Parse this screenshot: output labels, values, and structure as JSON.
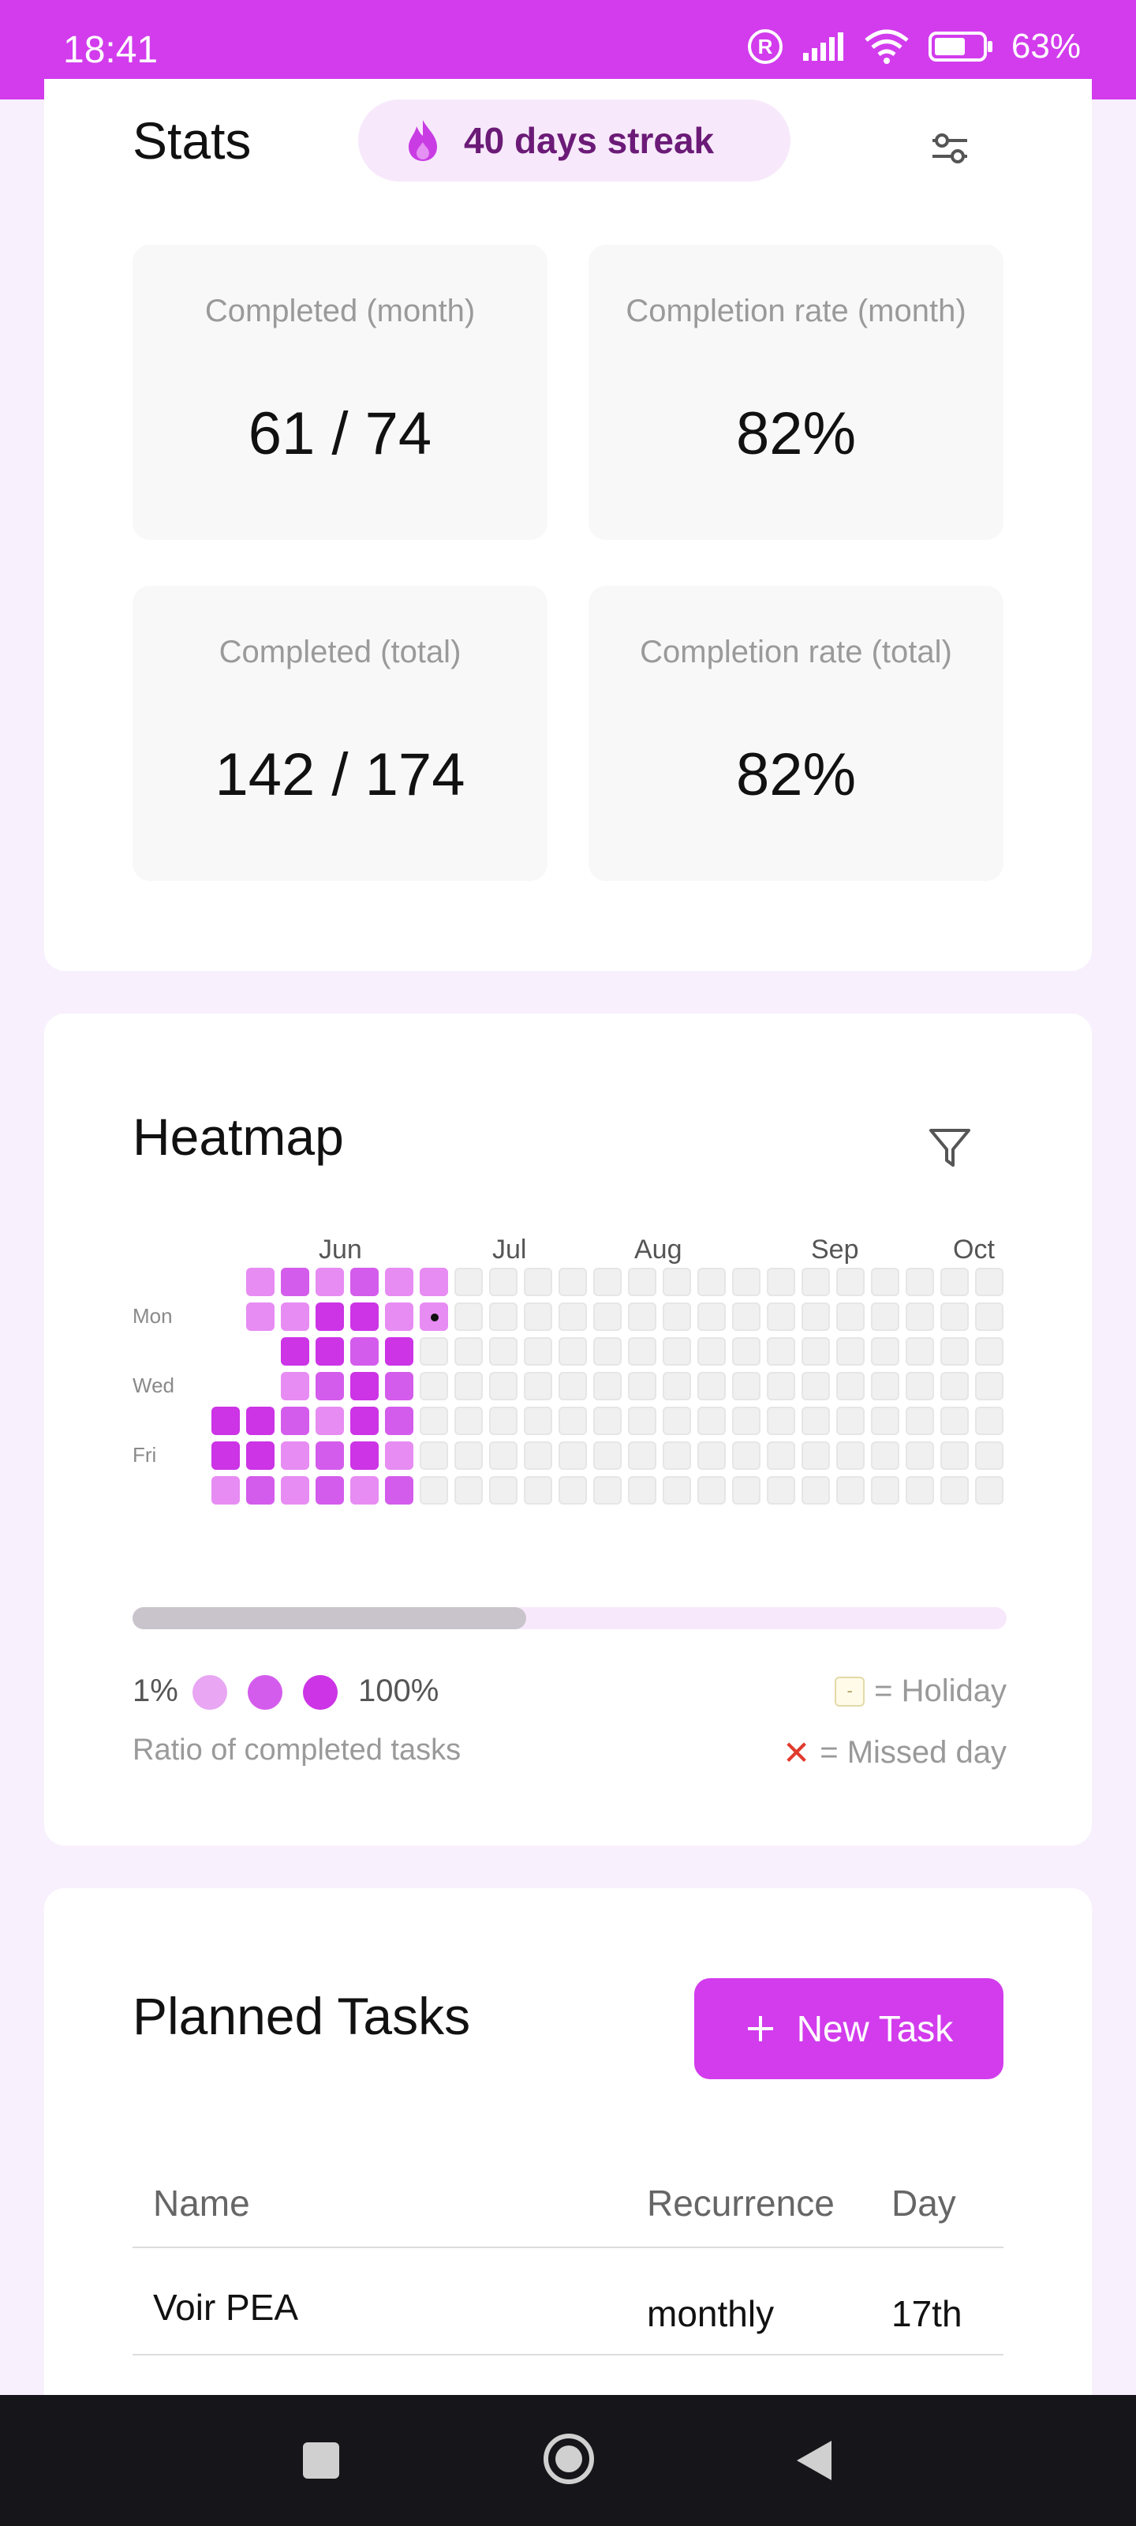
{
  "status": {
    "time": "18:41",
    "battery": "63%"
  },
  "stats": {
    "title": "Stats",
    "streak": "40 days streak",
    "boxes": [
      {
        "label": "Completed (month)",
        "value": "61 / 74"
      },
      {
        "label": "Completion rate (month)",
        "value": "82%"
      },
      {
        "label": "Completed (total)",
        "value": "142 / 174"
      },
      {
        "label": "Completion rate (total)",
        "value": "82%"
      }
    ]
  },
  "heatmap": {
    "title": "Heatmap",
    "months": [
      "Jun",
      "Jul",
      "Aug",
      "Sep",
      "Oct"
    ],
    "days": [
      "Mon",
      "Wed",
      "Fri"
    ],
    "columns_visible": 23,
    "filled_columns": [
      {
        "col": 0,
        "levels": [
          0,
          0,
          0,
          0,
          3,
          3,
          1
        ]
      },
      {
        "col": 1,
        "levels": [
          1,
          1,
          0,
          0,
          3,
          3,
          2
        ]
      },
      {
        "col": 2,
        "levels": [
          2,
          1,
          3,
          1,
          2,
          1,
          1
        ]
      },
      {
        "col": 3,
        "levels": [
          1,
          3,
          3,
          2,
          1,
          2,
          2
        ]
      },
      {
        "col": 4,
        "levels": [
          2,
          3,
          2,
          3,
          3,
          3,
          1
        ]
      },
      {
        "col": 5,
        "levels": [
          1,
          1,
          3,
          2,
          2,
          1,
          2
        ]
      },
      {
        "col": 6,
        "levels": [
          1,
          "today",
          0,
          0,
          0,
          0,
          0
        ]
      }
    ],
    "scroll_position": 0.45,
    "legend": {
      "min": "1%",
      "max": "100%",
      "holiday": "= Holiday",
      "holiday_symbol": "-",
      "missed": "= Missed day",
      "missed_symbol": "✕",
      "note": "Ratio of completed tasks"
    },
    "colors": {
      "level1": "#e78cf3",
      "level2": "#d45cec",
      "level3": "#cc34e6",
      "empty": "#f0f0f0"
    }
  },
  "tasks": {
    "title": "Planned Tasks",
    "new_task_label": "New Task",
    "columns": {
      "name": "Name",
      "recurrence": "Recurrence",
      "day": "Day"
    },
    "rows": [
      {
        "name": "Voir PEA",
        "recurrence": "monthly",
        "day": "17th"
      }
    ]
  },
  "colors": {
    "accent": "#d23ced",
    "background": "#f8f0fd"
  },
  "icons": {
    "streak": "flame-icon",
    "settings": "sliders-icon",
    "filter": "filter-icon",
    "add": "plus-icon"
  }
}
